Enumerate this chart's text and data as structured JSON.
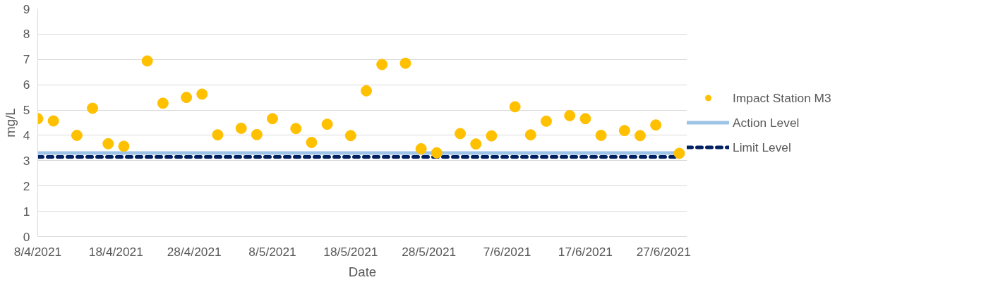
{
  "chart_data": {
    "type": "scatter",
    "xlabel": "Date",
    "ylabel": "mg/L",
    "x": [
      "2021-04-08",
      "2021-04-10",
      "2021-04-13",
      "2021-04-15",
      "2021-04-17",
      "2021-04-19",
      "2021-04-22",
      "2021-04-24",
      "2021-04-27",
      "2021-04-29",
      "2021-05-01",
      "2021-05-04",
      "2021-05-06",
      "2021-05-08",
      "2021-05-11",
      "2021-05-13",
      "2021-05-15",
      "2021-05-18",
      "2021-05-20",
      "2021-05-22",
      "2021-05-25",
      "2021-05-27",
      "2021-05-29",
      "2021-06-01",
      "2021-06-03",
      "2021-06-05",
      "2021-06-08",
      "2021-06-10",
      "2021-06-12",
      "2021-06-15",
      "2021-06-17",
      "2021-06-19",
      "2021-06-22",
      "2021-06-24",
      "2021-06-26",
      "2021-06-29"
    ],
    "series": [
      {
        "name": "Impact Station M3",
        "marker": "circle",
        "color": "#ffc000",
        "values": [
          4.66,
          4.57,
          4.0,
          5.07,
          3.67,
          3.57,
          6.94,
          5.27,
          5.5,
          5.63,
          4.02,
          4.28,
          4.03,
          4.66,
          4.27,
          3.72,
          4.44,
          3.99,
          5.76,
          6.8,
          6.85,
          3.47,
          3.31,
          4.07,
          3.66,
          3.98,
          5.13,
          4.02,
          4.56,
          4.78,
          4.66,
          4.0,
          4.19,
          3.99,
          4.41,
          3.29
        ]
      },
      {
        "name": "Action Level",
        "type": "line",
        "line_style": "solid",
        "color": "#9dc3e6",
        "x": [
          "2021-04-08",
          "2021-06-29"
        ],
        "values": [
          3.3,
          3.3
        ]
      },
      {
        "name": "Limit Level",
        "type": "line",
        "line_style": "dashed",
        "color": "#002060",
        "x": [
          "2021-04-08",
          "2021-06-29"
        ],
        "values": [
          3.15,
          3.15
        ]
      }
    ],
    "xlim": [
      "2021-04-08",
      "2021-06-30"
    ],
    "xticks": [
      {
        "value": "2021-04-08",
        "label": "8/4/2021"
      },
      {
        "value": "2021-04-18",
        "label": "18/4/2021"
      },
      {
        "value": "2021-04-28",
        "label": "28/4/2021"
      },
      {
        "value": "2021-05-08",
        "label": "8/5/2021"
      },
      {
        "value": "2021-05-18",
        "label": "18/5/2021"
      },
      {
        "value": "2021-05-28",
        "label": "28/5/2021"
      },
      {
        "value": "2021-06-07",
        "label": "7/6/2021"
      },
      {
        "value": "2021-06-17",
        "label": "17/6/2021"
      },
      {
        "value": "2021-06-27",
        "label": "27/6/2021"
      }
    ],
    "ylim": [
      0,
      9
    ],
    "yticks": [
      0,
      1,
      2,
      3,
      4,
      5,
      6,
      7,
      8,
      9
    ],
    "grid": "y",
    "legend": "right"
  }
}
